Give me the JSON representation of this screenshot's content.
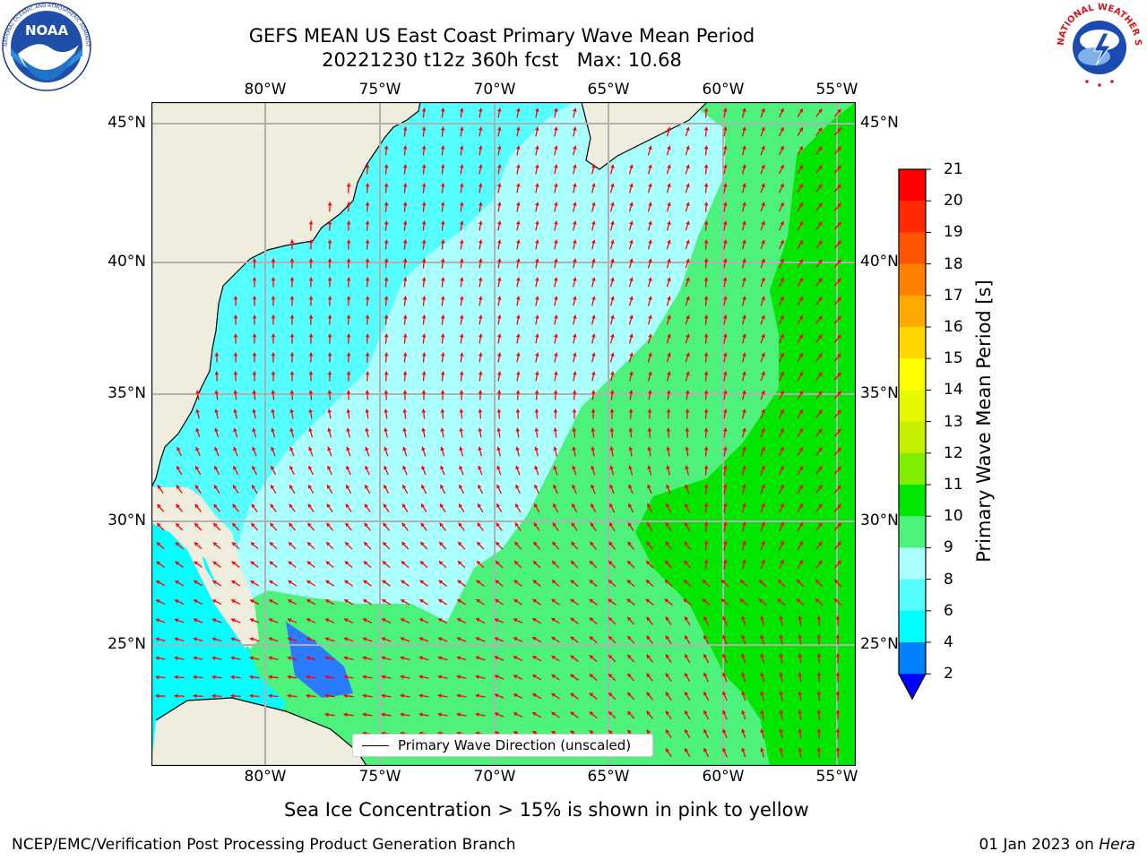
{
  "title": {
    "line1": "GEFS MEAN US East Coast Primary Wave Mean Period",
    "line2": "20221230 t12z 360h fcst   Max: 10.68"
  },
  "logos": {
    "left": {
      "icon": "noaa-logo",
      "text": "NOAA",
      "ring_text": "NATIONAL OCEANIC AND ATMOSPHERIC ADMINISTRATION · U.S. DEPARTMENT OF COMMERCE"
    },
    "right": {
      "icon": "nws-logo",
      "ring_text": "NATIONAL WEATHER SERVICE"
    }
  },
  "map": {
    "lon_range": [
      -85,
      -54.2
    ],
    "lat_range": [
      20.4,
      45.8
    ],
    "lon_ticks": [
      "80°W",
      "75°W",
      "70°W",
      "65°W",
      "60°W",
      "55°W"
    ],
    "lat_ticks": [
      "45°N",
      "40°N",
      "35°N",
      "30°N",
      "25°N"
    ],
    "colors": {
      "land": "#efedde",
      "arrow": "#ff0000",
      "grid": "#b0b0b0",
      "coast": "#000000"
    }
  },
  "legend": {
    "label": "Primary Wave Direction (unscaled)"
  },
  "colorbar": {
    "label": "Primary Wave Mean Period [s]",
    "ticks": [
      "21",
      "20",
      "19",
      "18",
      "17",
      "16",
      "15",
      "14",
      "13",
      "12",
      "11",
      "10",
      "9",
      "8",
      "6",
      "4",
      "2"
    ],
    "levels": [
      {
        "max": 21,
        "color": "#ff0000"
      },
      {
        "max": 20,
        "color": "#ff2a00"
      },
      {
        "max": 19,
        "color": "#ff5500"
      },
      {
        "max": 18,
        "color": "#ff8000"
      },
      {
        "max": 17,
        "color": "#ffaa00"
      },
      {
        "max": 16,
        "color": "#ffd500"
      },
      {
        "max": 15,
        "color": "#ffff00"
      },
      {
        "max": 14,
        "color": "#e5f800"
      },
      {
        "max": 13,
        "color": "#c4f000"
      },
      {
        "max": 12,
        "color": "#80ee00"
      },
      {
        "max": 11,
        "color": "#00e600"
      },
      {
        "max": 10,
        "color": "#4cf27c"
      },
      {
        "max": 9,
        "color": "#aaffff"
      },
      {
        "max": 8,
        "color": "#55ffff"
      },
      {
        "max": 6,
        "color": "#00ffff"
      },
      {
        "max": 4,
        "color": "#0080ff"
      },
      {
        "max": 2,
        "color": "#0000ff"
      }
    ]
  },
  "caption": "Sea Ice Concentration > 15% is shown in pink to yellow",
  "footer": {
    "left": "NCEP/EMC/Verification Post Processing Product Generation Branch",
    "right_prefix": "01 Jan 2023 on ",
    "right_machine": "Hera"
  }
}
